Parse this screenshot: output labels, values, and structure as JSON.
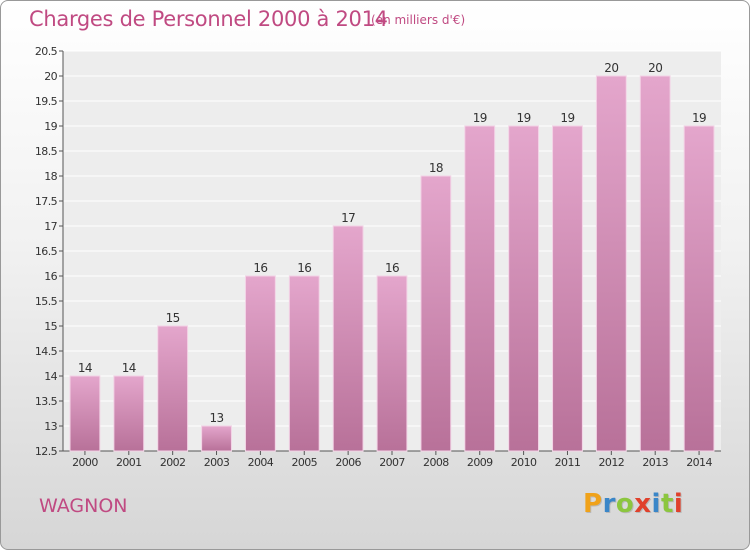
{
  "header": {
    "title": "Charges de Personnel 2000 à 2014",
    "unit": "(en milliers d'€)"
  },
  "footer": {
    "commune": "WAGNON",
    "logo": [
      "P",
      "r",
      "o",
      "x",
      "i",
      "t",
      "i"
    ]
  },
  "colors": {
    "title": "#c04a82",
    "bar_top": "#e4a6cc",
    "bar_bottom": "#b87199",
    "logo_letters": [
      "#f0a21a",
      "#3a86c8",
      "#8cc63f",
      "#e0412c",
      "#3a86c8",
      "#8cc63f",
      "#e0412c"
    ]
  },
  "chart_data": {
    "type": "bar",
    "categories": [
      "2000",
      "2001",
      "2002",
      "2003",
      "2004",
      "2005",
      "2006",
      "2007",
      "2008",
      "2009",
      "2010",
      "2011",
      "2012",
      "2013",
      "2014"
    ],
    "values": [
      14,
      14,
      15,
      13,
      16,
      16,
      17,
      16,
      18,
      19,
      19,
      19,
      20,
      20,
      19
    ],
    "ylim": [
      12.5,
      20.5
    ],
    "yticks": [
      "12.5",
      "13",
      "13.5",
      "14",
      "14.5",
      "15",
      "15.5",
      "16",
      "16.5",
      "17",
      "17.5",
      "18",
      "18.5",
      "19",
      "19.5",
      "20",
      "20.5"
    ],
    "grid": true
  }
}
